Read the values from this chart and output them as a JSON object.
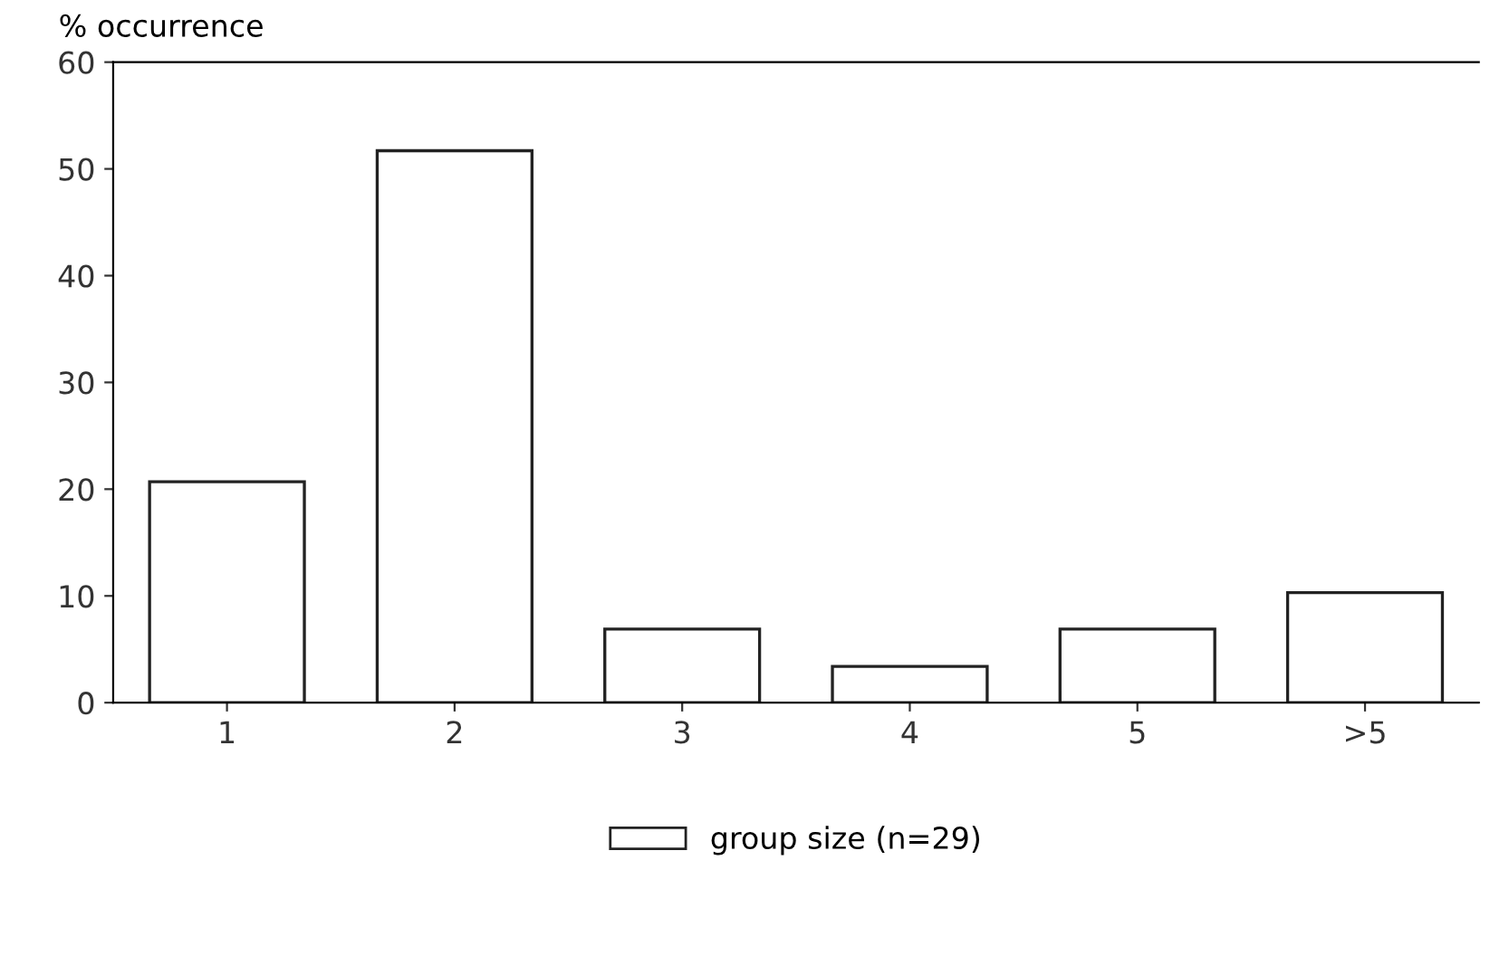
{
  "chart_data": {
    "type": "bar",
    "ylabel": "% occurrence",
    "categories": [
      "1",
      "2",
      "3",
      "4",
      "5",
      ">5"
    ],
    "series": [
      {
        "name": "group size (n=29)",
        "color": "#ffffff",
        "values": [
          20.7,
          51.7,
          6.9,
          3.4,
          6.9,
          10.3
        ]
      }
    ],
    "ylim": [
      0,
      60
    ],
    "yticks": [
      0,
      10,
      20,
      30,
      40,
      50,
      60
    ],
    "grid": false,
    "legend": "bottom"
  }
}
